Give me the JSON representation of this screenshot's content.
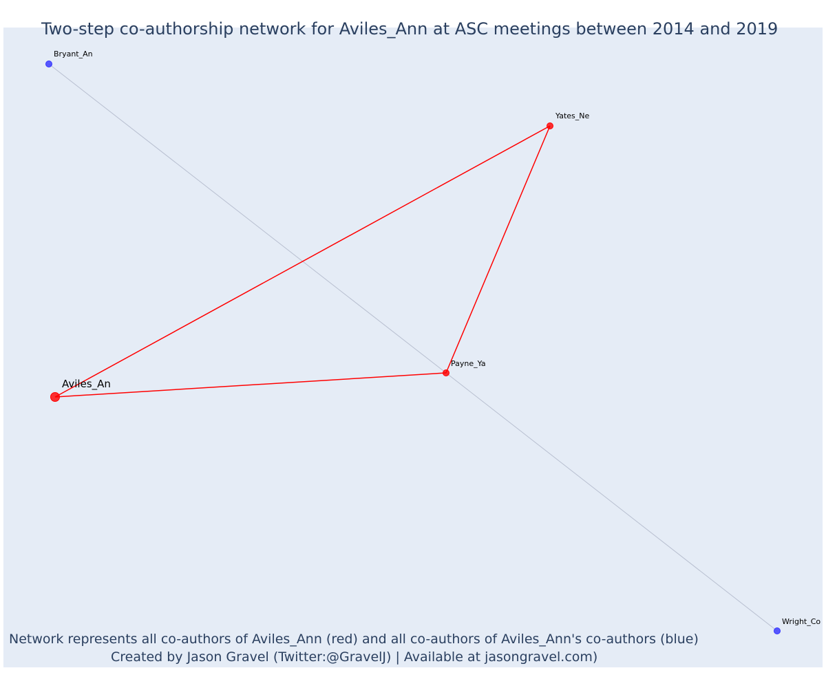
{
  "title": "Two-step co-authorship network for Aviles_Ann at ASC meetings between 2014 and 2019",
  "caption": {
    "line1": "Network represents all co-authors of Aviles_Ann (red) and all co-authors of Aviles_Ann's co-authors (blue)",
    "line2": "Created by Jason Gravel (Twitter:@GravelJ) | Available at jasongravel.com)"
  },
  "colors": {
    "first_degree": "#ff0000",
    "second_degree": "#3333ff",
    "second_degree_edge": "#b8bfd0",
    "plot_background": "#e5ecf6"
  },
  "nodes": [
    {
      "id": "aviles",
      "label": "Aviles_An",
      "group": "ego"
    },
    {
      "id": "payne",
      "label": "Payne_Ya",
      "group": "first"
    },
    {
      "id": "yates",
      "label": "Yates_Ne",
      "group": "first"
    },
    {
      "id": "bryant",
      "label": "Bryant_An",
      "group": "second"
    },
    {
      "id": "wright",
      "label": "Wright_Co",
      "group": "second"
    }
  ],
  "edges": [
    {
      "source": "aviles",
      "target": "yates",
      "group": "first"
    },
    {
      "source": "aviles",
      "target": "payne",
      "group": "first"
    },
    {
      "source": "yates",
      "target": "payne",
      "group": "first"
    },
    {
      "source": "bryant",
      "target": "payne",
      "group": "second"
    },
    {
      "source": "payne",
      "target": "wright",
      "group": "second"
    }
  ]
}
